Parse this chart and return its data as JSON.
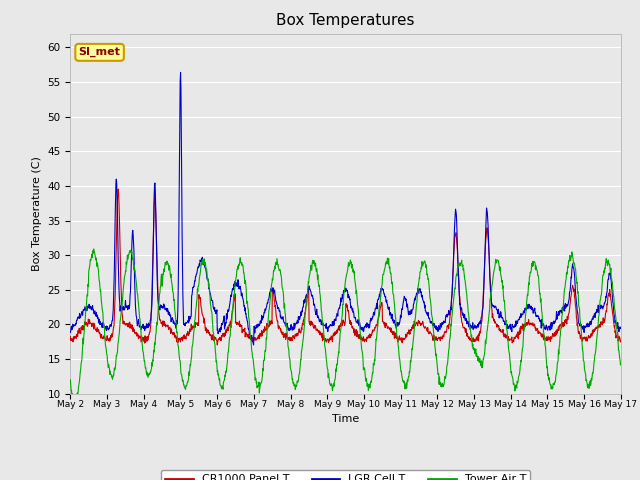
{
  "title": "Box Temperatures",
  "xlabel": "Time",
  "ylabel": "Box Temperature (C)",
  "ylim": [
    10,
    62
  ],
  "yticks": [
    10,
    15,
    20,
    25,
    30,
    35,
    40,
    45,
    50,
    55,
    60
  ],
  "background_color": "#e8e8e8",
  "plot_bg_color": "#e8e8e8",
  "grid_color": "#ffffff",
  "annotation_text": "SI_met",
  "annotation_bg": "#ffff99",
  "annotation_border": "#cc9900",
  "annotation_text_color": "#880000",
  "legend_entries": [
    "CR1000 Panel T",
    "LGR Cell T",
    "Tower Air T"
  ],
  "line_colors": [
    "#cc0000",
    "#0000cc",
    "#00aa00"
  ],
  "x_tick_labels": [
    "May 2",
    "May 3",
    "May 4",
    "May 5",
    "May 6",
    "May 7",
    "May 8",
    "May 9",
    "May 10",
    "May 11",
    "May 12",
    "May 13",
    "May 14",
    "May 15",
    "May 16",
    "May 17"
  ],
  "num_days": 15,
  "points_per_day": 96
}
